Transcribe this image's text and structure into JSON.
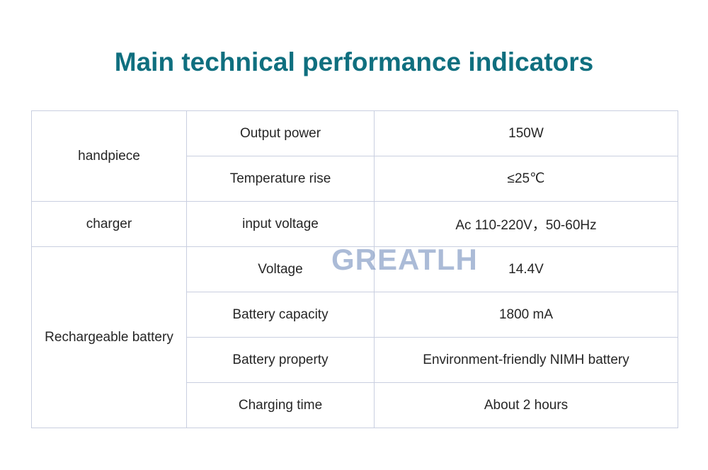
{
  "title": "Main technical performance indicators",
  "watermark": "GREATLH",
  "table": {
    "groups": [
      {
        "group": "handpiece",
        "rows": [
          {
            "parameter": "Output power",
            "value": "150W"
          },
          {
            "parameter": "Temperature rise",
            "value": "≤25℃"
          }
        ]
      },
      {
        "group": "charger",
        "rows": [
          {
            "parameter": "input voltage",
            "value": "Ac 110-220V，50-60Hz"
          }
        ]
      },
      {
        "group": "Rechargeable battery",
        "rows": [
          {
            "parameter": "Voltage",
            "value": "14.4V"
          },
          {
            "parameter": "Battery capacity",
            "value": "1800 mA"
          },
          {
            "parameter": "Battery property",
            "value": "Environment-friendly NIMH battery"
          },
          {
            "parameter": "Charging time",
            "value": "About 2 hours"
          }
        ]
      }
    ]
  },
  "colors": {
    "title": "#0f6f7f",
    "border": "#c9cfe0",
    "text": "#262626",
    "watermark": "#7891be"
  }
}
